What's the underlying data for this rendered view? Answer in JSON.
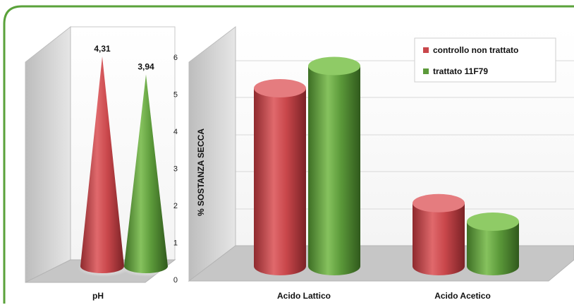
{
  "chart_data": [
    {
      "type": "bar",
      "style": "3d-cone",
      "categories": [
        "pH"
      ],
      "series": [
        {
          "name": "controllo non trattato",
          "values": [
            4.31
          ],
          "color": "#c9474b"
        },
        {
          "name": "trattato 11F79",
          "values": [
            3.94
          ],
          "color": "#5c9a3a"
        }
      ],
      "data_labels": [
        "4,31",
        "3,94"
      ],
      "grid": false
    },
    {
      "type": "bar",
      "style": "3d-cylinder",
      "categories": [
        "Acido Lattico",
        "Acido Acetico"
      ],
      "series": [
        {
          "name": "controllo non trattato",
          "values": [
            4.8,
            1.7
          ],
          "color": "#c9474b"
        },
        {
          "name": "trattato 11F79",
          "values": [
            5.4,
            1.2
          ],
          "color": "#5c9a3a"
        }
      ],
      "ylabel": "% SOSTANZA SECCA",
      "ylim": [
        0,
        6
      ],
      "yticks": [
        "0",
        "1",
        "2",
        "3",
        "4",
        "5",
        "6"
      ],
      "grid": true,
      "legend": {
        "placement": "top-right",
        "entries": [
          "controllo non trattato",
          "trattato 11F79"
        ]
      }
    }
  ],
  "colors": {
    "frame_border": "#5aa23a",
    "control": "#c9474b",
    "treated": "#5c9a3a",
    "wall": "#d6d6d6",
    "floor": "#c4c4c4"
  }
}
